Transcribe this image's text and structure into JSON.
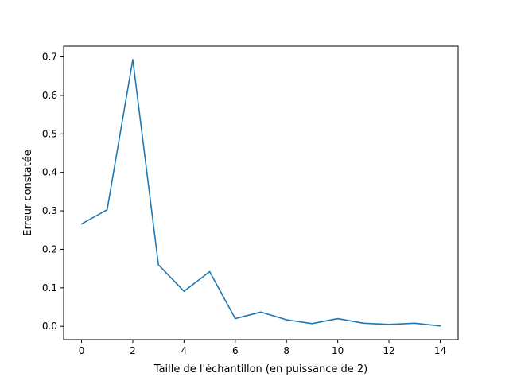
{
  "chart_data": {
    "type": "line",
    "title": "",
    "xlabel": "Taille de l'échantillon (en puissance de 2)",
    "ylabel": "Erreur constatée",
    "xlim": [
      -0.7,
      14.7
    ],
    "ylim": [
      -0.0347,
      0.728
    ],
    "xticks": [
      0,
      2,
      4,
      6,
      8,
      10,
      12,
      14
    ],
    "xtick_labels": [
      "0",
      "2",
      "4",
      "6",
      "8",
      "10",
      "12",
      "14"
    ],
    "yticks": [
      0.0,
      0.1,
      0.2,
      0.3,
      0.4,
      0.5,
      0.6,
      0.7
    ],
    "ytick_labels": [
      "0.0",
      "0.1",
      "0.2",
      "0.3",
      "0.4",
      "0.5",
      "0.6",
      "0.7"
    ],
    "grid": false,
    "series": [
      {
        "color": "#1f77b4",
        "x": [
          0,
          1,
          2,
          3,
          4,
          5,
          6,
          7,
          8,
          9,
          10,
          11,
          12,
          13,
          14
        ],
        "values": [
          0.266,
          0.303,
          0.693,
          0.16,
          0.091,
          0.142,
          0.02,
          0.037,
          0.017,
          0.007,
          0.02,
          0.008,
          0.005,
          0.008,
          0.001
        ]
      }
    ]
  }
}
